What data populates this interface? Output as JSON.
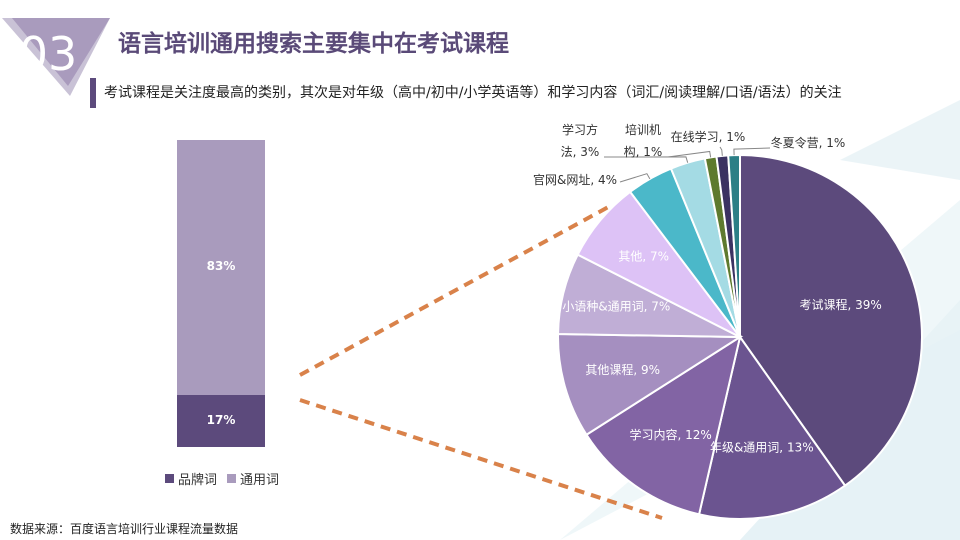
{
  "header": {
    "badge_number": "03",
    "title": "语言培训通用搜索主要集中在考试课程",
    "subtitle": "考试课程是关注度最高的类别，其次是对年级（高中/初中/小学英语等）和学习内容（词汇/阅读理解/口语/语法）的关注"
  },
  "source": "数据来源：百度语言培训行业课程流量数据",
  "colors": {
    "brand_purple": "#5c4a7c",
    "connector_orange": "#d9824a",
    "light_purple": "#a99bbd"
  },
  "chart_data": [
    {
      "type": "bar",
      "stacked": true,
      "categories": [
        ""
      ],
      "series": [
        {
          "name": "品牌词",
          "values": [
            17
          ],
          "label": "17%",
          "color": "#5c4a7c"
        },
        {
          "name": "通用词",
          "values": [
            83
          ],
          "label": "83%",
          "color": "#a99bbd"
        }
      ],
      "ylim": [
        0,
        100
      ]
    },
    {
      "type": "pie",
      "slices": [
        {
          "label": "考试课程, 39%",
          "value": 39,
          "color": "#5c4a7c"
        },
        {
          "label": "年级&通用词, 13%",
          "value": 13,
          "color": "#6b5490"
        },
        {
          "label": "学习内容, 12%",
          "value": 12,
          "color": "#8264a4"
        },
        {
          "label": "其他课程, 9%",
          "value": 9,
          "color": "#a58fc0"
        },
        {
          "label": "小语种&通用词, 7%",
          "value": 7,
          "color": "#c0aed6"
        },
        {
          "label": "其他, 7%",
          "value": 7,
          "color": "#ddc2f6"
        },
        {
          "label": "官网&网址, 4%",
          "value": 4,
          "color": "#4bb8c9"
        },
        {
          "label": "学习方法, 3%",
          "value": 3,
          "color": "#a4dbe4"
        },
        {
          "label": "培训机构, 1%",
          "value": 1,
          "color": "#5e7a2e"
        },
        {
          "label": "在线学习, 1%",
          "value": 1,
          "color": "#3b3262"
        },
        {
          "label": "冬夏令营, 1%",
          "value": 1,
          "color": "#2c7f86"
        }
      ]
    }
  ]
}
